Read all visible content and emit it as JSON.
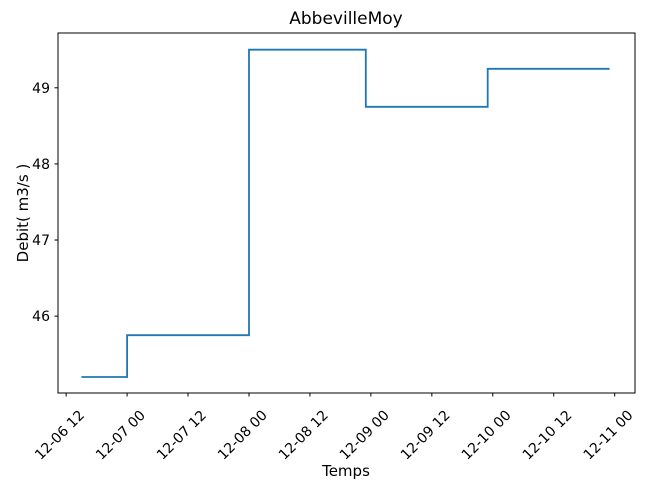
{
  "chart_data": {
    "type": "line",
    "title": "AbbevilleMoy",
    "xlabel": "Temps",
    "ylabel": "Debit( m3/s )",
    "grid": false,
    "legend": null,
    "line_color": "#1f77b4",
    "x_tick_positions": [
      12,
      24,
      36,
      48,
      60,
      72,
      84,
      96,
      108,
      120
    ],
    "x_tick_labels": [
      "12-06 12",
      "12-07 00",
      "12-07 12",
      "12-08 00",
      "12-08 12",
      "12-09 00",
      "12-09 12",
      "12-10 00",
      "12-10 12",
      "12-11 00"
    ],
    "x_tick_rotation_deg": 45,
    "y_tick_positions": [
      46,
      47,
      48,
      49
    ],
    "y_tick_labels": [
      "46",
      "47",
      "48",
      "49"
    ],
    "xlim": [
      10.4,
      124.0
    ],
    "ylim": [
      44.99,
      49.72
    ],
    "x_unit_note": "hours, where tick 12-06 12 = hour 12",
    "series": [
      {
        "name": "debit",
        "style": "step",
        "points": [
          [
            15,
            45.2
          ],
          [
            24,
            45.2
          ],
          [
            24,
            45.75
          ],
          [
            48,
            45.75
          ],
          [
            48,
            49.5
          ],
          [
            71,
            49.5
          ],
          [
            71,
            48.75
          ],
          [
            95,
            48.75
          ],
          [
            95,
            49.25
          ],
          [
            119,
            49.25
          ]
        ]
      }
    ]
  }
}
